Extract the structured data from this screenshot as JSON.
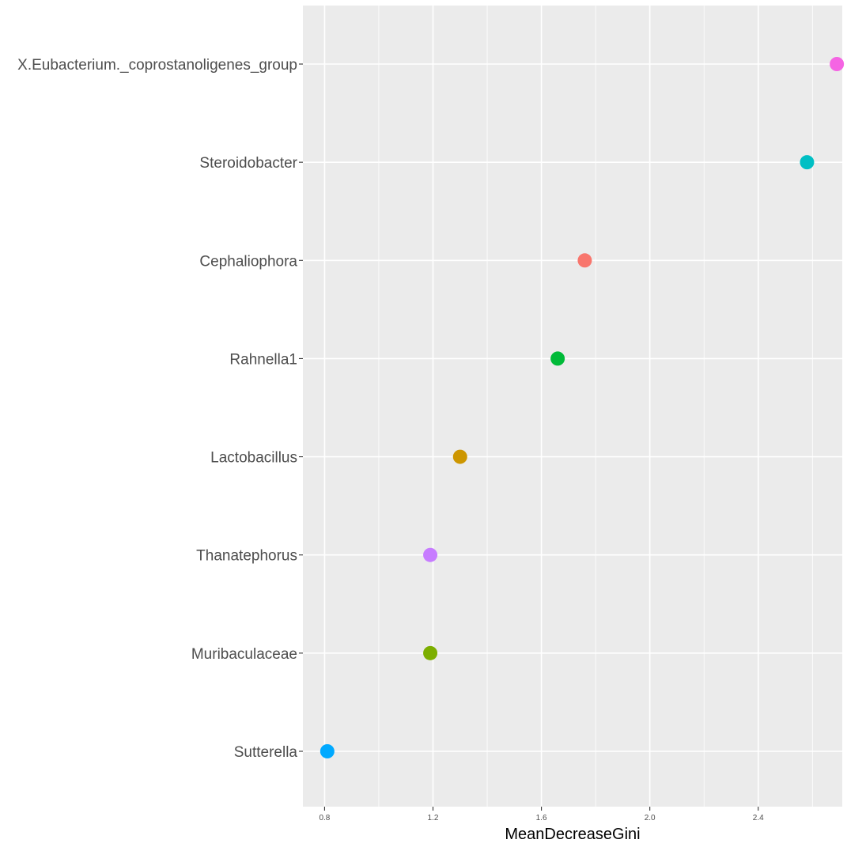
{
  "chart_data": {
    "type": "scatter",
    "title": "",
    "xlabel": "MeanDecreaseGini",
    "ylabel": "",
    "xlim": [
      0.72,
      2.71
    ],
    "x_ticks": [
      0.8,
      1.2,
      1.6,
      2.0,
      2.4
    ],
    "x_tick_labels": [
      "0.8",
      "1.2",
      "1.6",
      "2.0",
      "2.4"
    ],
    "grid": true,
    "legend": "none",
    "points": [
      {
        "label": "X.Eubacterium._coprostanoligenes_group",
        "value": 2.69,
        "color": "#F564E3"
      },
      {
        "label": "Steroidobacter",
        "value": 2.58,
        "color": "#00BFC4"
      },
      {
        "label": "Cephaliophora",
        "value": 1.76,
        "color": "#F8766D"
      },
      {
        "label": "Rahnella1",
        "value": 1.66,
        "color": "#00BA38"
      },
      {
        "label": "Lactobacillus",
        "value": 1.3,
        "color": "#CD9600"
      },
      {
        "label": "Thanatephorus",
        "value": 1.19,
        "color": "#C77CFF"
      },
      {
        "label": "Muribaculaceae",
        "value": 1.19,
        "color": "#7CAE00"
      },
      {
        "label": "Sutterella",
        "value": 0.81,
        "color": "#00A9FF"
      }
    ],
    "panel_color": "#EBEBEB",
    "grid_color": "#FFFFFF"
  }
}
